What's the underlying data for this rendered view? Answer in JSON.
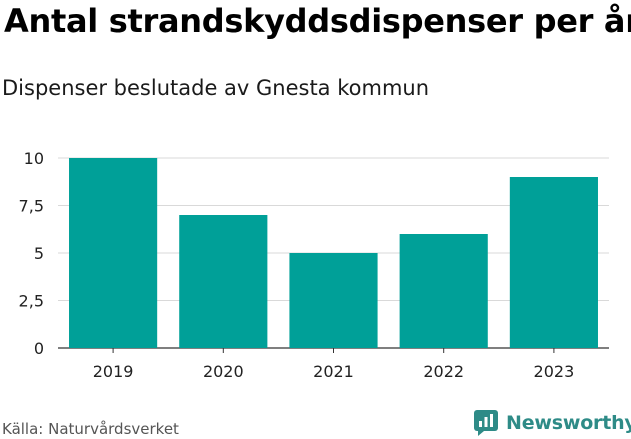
{
  "header": {
    "title": "Antal strandskyddsdispenser per år",
    "subtitle": "Dispenser beslutade av Gnesta kommun"
  },
  "footer": {
    "source": "Källa: Naturvårdsverket",
    "brand": "Newsworthy"
  },
  "colors": {
    "bar": "#00a098",
    "grid": "#d9d9d9",
    "brand": "#2e8b87"
  },
  "chart_data": {
    "type": "bar",
    "title": "Antal strandskyddsdispenser per år",
    "subtitle": "Dispenser beslutade av Gnesta kommun",
    "xlabel": "",
    "ylabel": "",
    "categories": [
      "2019",
      "2020",
      "2021",
      "2022",
      "2023"
    ],
    "values": [
      10,
      7,
      5,
      6,
      9
    ],
    "ylim": [
      0,
      10
    ],
    "yticks": [
      0,
      2.5,
      5,
      7.5,
      10
    ],
    "ytick_labels": [
      "0",
      "2,5",
      "5",
      "7,5",
      "10"
    ],
    "grid": true,
    "legend": "none"
  }
}
